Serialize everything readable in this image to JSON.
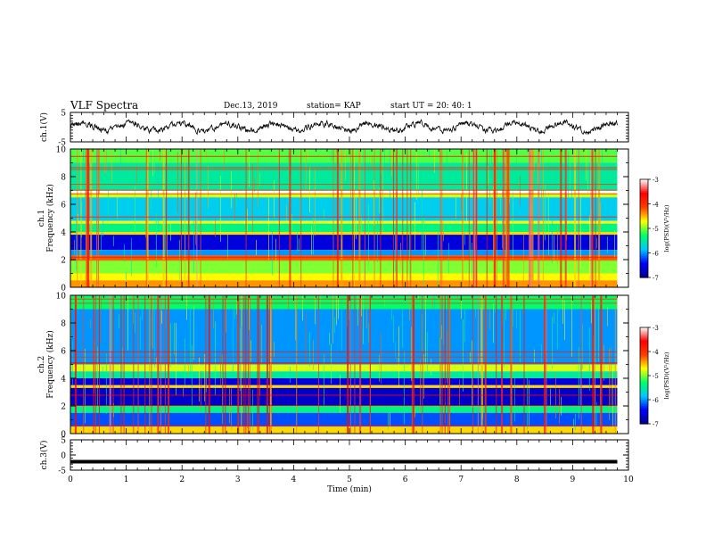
{
  "header": {
    "title": "VLF Spectra",
    "date": "Dec.13, 2019",
    "station": "station= KAP",
    "start": "start  UT =   20: 40: 1"
  },
  "chart_data": [
    {
      "type": "line",
      "panel": "ch1-waveform",
      "ylabel": "ch.1(V)",
      "ylim": [
        -5,
        5
      ],
      "yticks": [
        "5",
        "-5"
      ],
      "xlim": [
        0,
        9.8
      ],
      "note_series_level": "noisy trace around 0 V, amplitude about ±1.5 V"
    },
    {
      "type": "heatmap",
      "panel": "ch1-spectrogram",
      "ylabel": "ch.1\nFrequency (kHz)",
      "ylim": [
        0,
        10
      ],
      "yticks": [
        "0",
        "2",
        "4",
        "6",
        "8",
        "10"
      ],
      "xlim": [
        0,
        9.8
      ],
      "colorbar": {
        "label": "log(PSD)(V²/Hz)",
        "ticks": [
          "-3",
          "-4",
          "-5",
          "-6",
          "-7"
        ],
        "range": [
          -7,
          -3
        ]
      },
      "bands": [
        {
          "f": [
            9.0,
            10.0
          ],
          "level": -5.1
        },
        {
          "f": [
            7.0,
            9.0
          ],
          "level": -5.5
        },
        {
          "f": [
            6.5,
            6.8
          ],
          "level": -4.8
        },
        {
          "f": [
            4.8,
            6.5
          ],
          "level": -5.8
        },
        {
          "f": [
            4.6,
            4.8
          ],
          "level": -4.7
        },
        {
          "f": [
            4.0,
            4.6
          ],
          "level": -5.4
        },
        {
          "f": [
            3.8,
            4.0
          ],
          "level": -4.6
        },
        {
          "f": [
            2.7,
            3.8
          ],
          "level": -6.6
        },
        {
          "f": [
            2.3,
            2.7
          ],
          "level": -6.0
        },
        {
          "f": [
            2.0,
            2.3
          ],
          "level": -4.2
        },
        {
          "f": [
            1.0,
            2.0
          ],
          "level": -5.0
        },
        {
          "f": [
            0.5,
            1.0
          ],
          "level": -4.7
        },
        {
          "f": [
            0.0,
            0.5
          ],
          "level": -4.4
        }
      ]
    },
    {
      "type": "heatmap",
      "panel": "ch2-spectrogram",
      "ylabel": "ch.2\nFrequency (kHz)",
      "ylim": [
        0,
        10
      ],
      "yticks": [
        "0",
        "2",
        "4",
        "6",
        "8",
        "10"
      ],
      "xlim": [
        0,
        9.8
      ],
      "colorbar": {
        "label": "log(PSD)(V²/Hz)",
        "ticks": [
          "-3",
          "-4",
          "-5",
          "-6",
          "-7"
        ],
        "range": [
          -7,
          -3
        ]
      },
      "bands": [
        {
          "f": [
            9.0,
            10.0
          ],
          "level": -5.3
        },
        {
          "f": [
            5.0,
            9.0
          ],
          "level": -6.0
        },
        {
          "f": [
            4.5,
            5.0
          ],
          "level": -4.8
        },
        {
          "f": [
            4.0,
            4.5
          ],
          "level": -5.5
        },
        {
          "f": [
            3.5,
            4.0
          ],
          "level": -6.6
        },
        {
          "f": [
            3.3,
            3.5
          ],
          "level": -4.6
        },
        {
          "f": [
            2.0,
            3.3
          ],
          "level": -6.7
        },
        {
          "f": [
            1.5,
            2.0
          ],
          "level": -5.4
        },
        {
          "f": [
            0.5,
            1.5
          ],
          "level": -6.2
        },
        {
          "f": [
            0.0,
            0.5
          ],
          "level": -4.6
        }
      ]
    },
    {
      "type": "line",
      "panel": "ch3-waveform",
      "ylabel": "ch.3(V)",
      "ylim": [
        -5,
        5
      ],
      "yticks": [
        "5",
        "0",
        "-5"
      ],
      "xlim": [
        0,
        9.8
      ],
      "x": [
        0,
        9.8
      ],
      "y": [
        -2.2,
        -2.2
      ]
    }
  ],
  "x_axis": {
    "label": "Time (min)",
    "ticks": [
      "0",
      "1",
      "2",
      "3",
      "4",
      "5",
      "6",
      "7",
      "8",
      "9",
      "10"
    ],
    "range": [
      0,
      10
    ]
  },
  "colors": {
    "colormap": [
      "#00008c",
      "#0000ff",
      "#00c8ff",
      "#00ff64",
      "#ffff00",
      "#ff3c00",
      "#ff0000",
      "#ffffff"
    ]
  }
}
